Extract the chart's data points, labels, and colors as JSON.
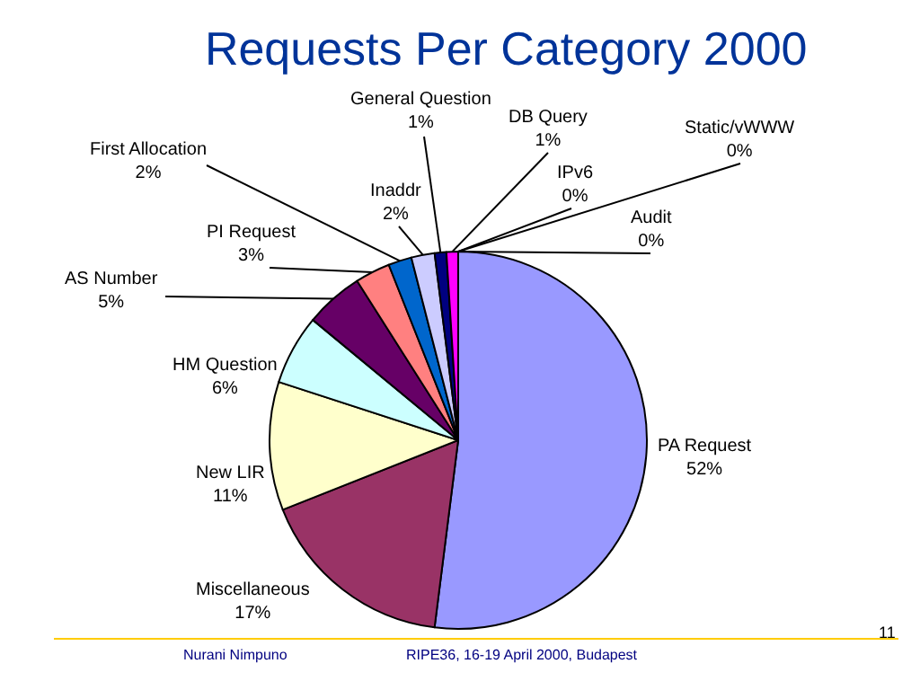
{
  "chart_data": {
    "type": "pie",
    "title": "Requests Per Category 2000",
    "categories": [
      "PA Request",
      "Miscellaneous",
      "New LIR",
      "HM Question",
      "AS Number",
      "PI Request",
      "First Allocation",
      "Inaddr",
      "General Question",
      "DB Query",
      "IPv6",
      "Static/vWWW",
      "Audit"
    ],
    "values": [
      52,
      17,
      11,
      6,
      5,
      3,
      2,
      2,
      1,
      1,
      0,
      0,
      0
    ],
    "value_labels": [
      "52%",
      "17%",
      "11%",
      "6%",
      "5%",
      "3%",
      "2%",
      "2%",
      "1%",
      "1%",
      "0%",
      "0%",
      "0%"
    ],
    "colors": [
      "#9999ff",
      "#993366",
      "#ffffcc",
      "#ccffff",
      "#660066",
      "#ff8080",
      "#0066cc",
      "#ccccff",
      "#000080",
      "#ff00ff",
      "#ffff00",
      "#00ffff",
      "#800080"
    ],
    "annotations": [
      "Nurani Nimpuno",
      "RIPE36, 16-19 April 2000, Budapest",
      "11"
    ]
  }
}
